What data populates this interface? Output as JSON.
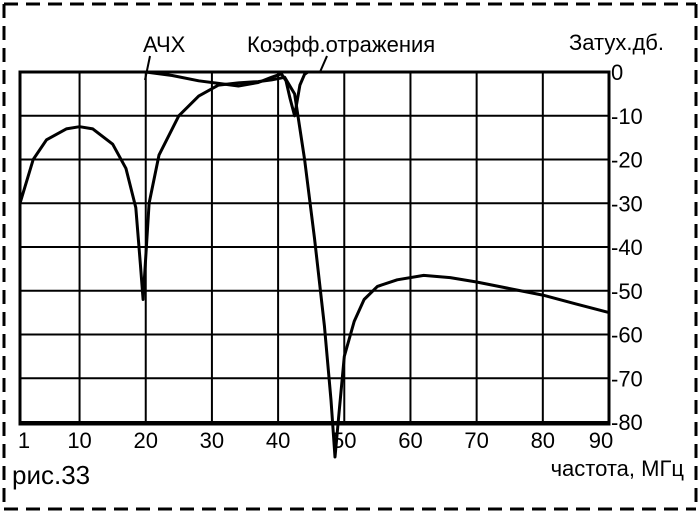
{
  "chart_data": {
    "type": "line",
    "figure_label": "рис.33",
    "xlabel": "частота, МГц",
    "ylabel": "Затух.дб.",
    "xlim": [
      1,
      90
    ],
    "ylim": [
      -85,
      0
    ],
    "x_ticks": [
      1,
      10,
      20,
      30,
      40,
      50,
      60,
      70,
      80,
      90
    ],
    "y_ticks": [
      0,
      -10,
      -20,
      -30,
      -40,
      -50,
      -60,
      -70,
      -80
    ],
    "grid": true,
    "series": [
      {
        "name": "АЧХ",
        "x": [
          1,
          3,
          5,
          8,
          10,
          12,
          15,
          17,
          18.5,
          19.2,
          19.6,
          20.5,
          22,
          25,
          28,
          31,
          34,
          37,
          39,
          41,
          42.5,
          44,
          45.5,
          47,
          48,
          48.6,
          49.2,
          50,
          51.5,
          53,
          55,
          58,
          62,
          66,
          70,
          75,
          80,
          85,
          90
        ],
        "y": [
          -30,
          -20,
          -15.5,
          -13,
          -12.5,
          -13,
          -16.5,
          -22,
          -31,
          -44,
          -52,
          -30,
          -19,
          -10,
          -5.5,
          -3,
          -2.5,
          -2.2,
          -1.8,
          -1.2,
          -5,
          -20,
          -38,
          -58,
          -75,
          -88,
          -78,
          -65,
          -57,
          -52,
          -49,
          -47.5,
          -46.5,
          -47,
          -48,
          -49.5,
          -51,
          -53,
          -55
        ]
      },
      {
        "name": "Коэфф.отражения",
        "x": [
          20,
          24,
          28,
          31,
          34,
          37,
          39,
          40.5,
          41.2,
          41.8,
          42.5,
          43.3,
          44,
          44.5,
          45,
          47
        ],
        "y": [
          0,
          -0.8,
          -2,
          -2.6,
          -3.2,
          -2.4,
          -1.2,
          -0.4,
          -2,
          -6,
          -10,
          -3,
          -0.5,
          0,
          0,
          0
        ]
      }
    ]
  }
}
